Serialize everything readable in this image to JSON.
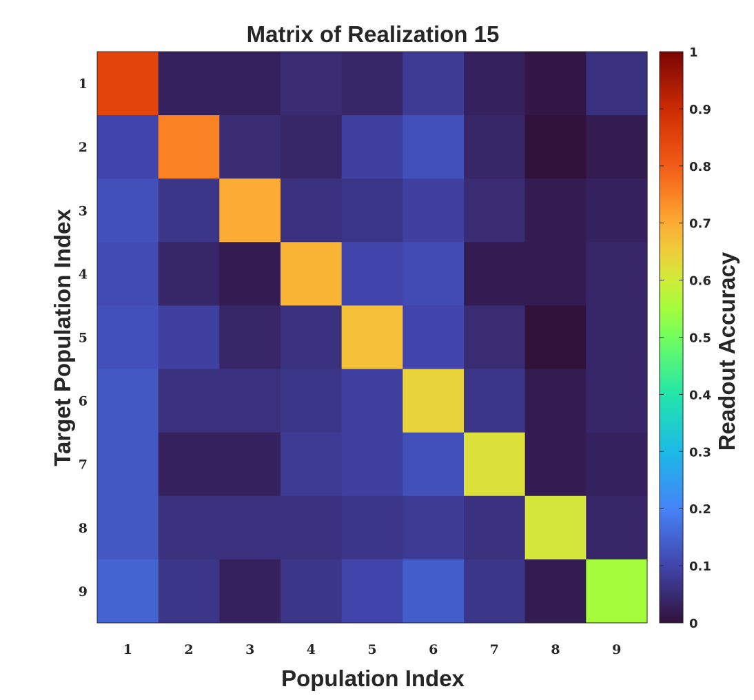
{
  "chart_data": {
    "type": "heatmap",
    "title": "Matrix of Realization 15",
    "xlabel": "Population Index",
    "ylabel": "Target Population Index",
    "x_categories": [
      "1",
      "2",
      "3",
      "4",
      "5",
      "6",
      "7",
      "8",
      "9"
    ],
    "y_categories": [
      "1",
      "2",
      "3",
      "4",
      "5",
      "6",
      "7",
      "8",
      "9"
    ],
    "values": [
      [
        0.85,
        0.03,
        0.03,
        0.05,
        0.04,
        0.08,
        0.03,
        0.01,
        0.06
      ],
      [
        0.1,
        0.75,
        0.05,
        0.04,
        0.09,
        0.12,
        0.04,
        0.0,
        0.02
      ],
      [
        0.12,
        0.07,
        0.7,
        0.06,
        0.07,
        0.09,
        0.05,
        0.02,
        0.03
      ],
      [
        0.11,
        0.04,
        0.02,
        0.69,
        0.1,
        0.11,
        0.02,
        0.02,
        0.04
      ],
      [
        0.12,
        0.09,
        0.04,
        0.06,
        0.67,
        0.1,
        0.05,
        0.0,
        0.04
      ],
      [
        0.13,
        0.06,
        0.06,
        0.07,
        0.09,
        0.64,
        0.07,
        0.02,
        0.04
      ],
      [
        0.13,
        0.03,
        0.03,
        0.08,
        0.09,
        0.12,
        0.62,
        0.02,
        0.03
      ],
      [
        0.13,
        0.06,
        0.06,
        0.06,
        0.07,
        0.08,
        0.06,
        0.61,
        0.04
      ],
      [
        0.15,
        0.07,
        0.03,
        0.07,
        0.1,
        0.14,
        0.07,
        0.02,
        0.55
      ]
    ],
    "colorbar": {
      "label": "Readout Accuracy",
      "range": [
        0,
        1
      ],
      "ticks": [
        "0",
        "0.1",
        "0.2",
        "0.3",
        "0.4",
        "0.5",
        "0.6",
        "0.7",
        "0.8",
        "0.9",
        "1"
      ],
      "colormap": "turbo"
    }
  }
}
